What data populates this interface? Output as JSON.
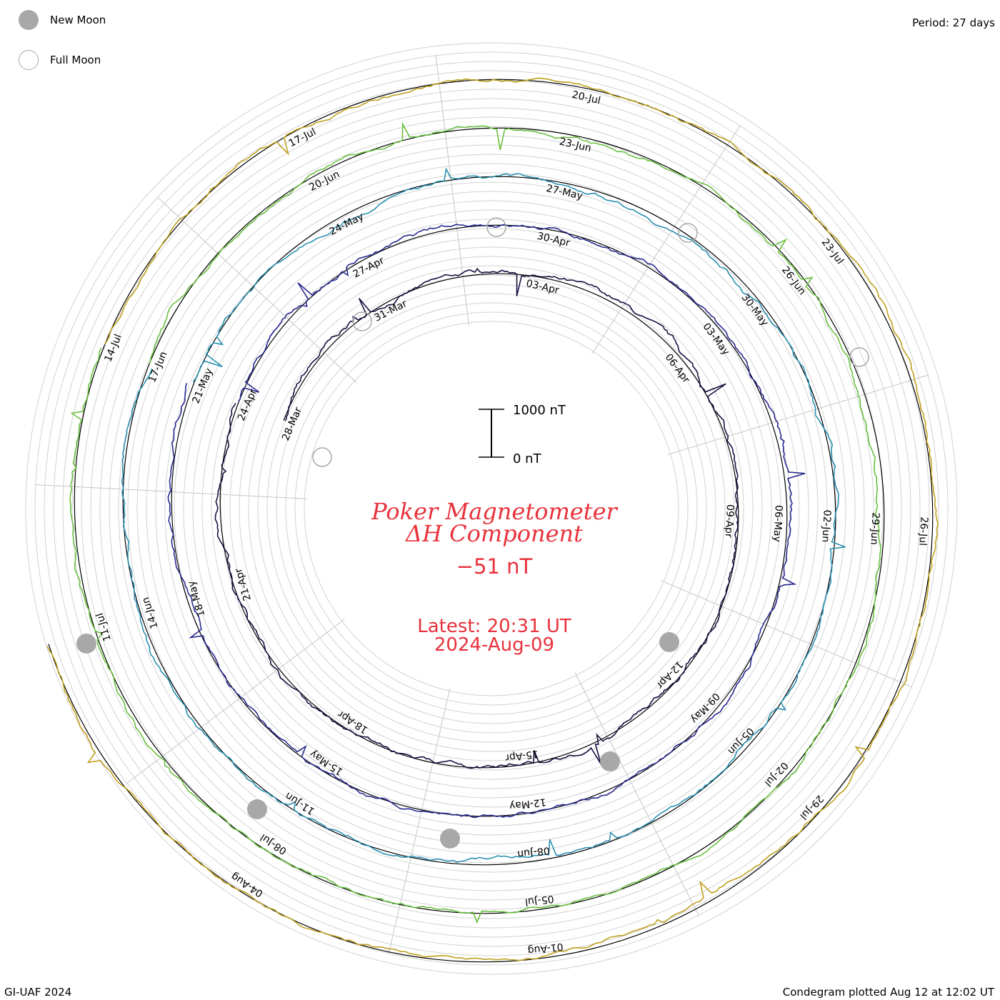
{
  "legend": {
    "new_moon_label": "New Moon",
    "full_moon_label": "Full Moon",
    "new_moon_color": "#a8a8a8",
    "full_moon_color": "#a8a8a8"
  },
  "header": {
    "period_text": "Period: 27 days"
  },
  "footer": {
    "left_text": "GI-UAF 2024",
    "right_text": "Condegram plotted Aug 12 at 12:02 UT"
  },
  "center": {
    "title_line1": "Poker Magnetometer",
    "title_line2": "ΔH Component",
    "value_text": "−51 nT",
    "latest_line1": "Latest: 20:31 UT",
    "latest_line2": "2024-Aug-09",
    "scale_top_label": "1000 nT",
    "scale_bottom_label": "0 nT",
    "text_color": "#e8323c"
  },
  "chart_data": {
    "type": "line",
    "title": "Poker Magnetometer ΔH Component",
    "units": "nT",
    "period_days": 27,
    "current_value": -51,
    "latest": "20:31 UT 2024-Aug-09",
    "scale_bar": [
      0,
      1000
    ],
    "rings": [
      {
        "color": "#1a1040",
        "dates": [
          "28-Mar",
          "31-Mar",
          "03-Apr",
          "06-Apr",
          "09-Apr",
          "12-Apr",
          "15-Apr",
          "18-Apr",
          "21-Apr"
        ]
      },
      {
        "color": "#2a2a90",
        "dates": [
          "24-Apr",
          "27-Apr",
          "30-Apr",
          "03-May",
          "06-May",
          "09-May",
          "12-May",
          "15-May",
          "18-May"
        ]
      },
      {
        "color": "#2a90b0",
        "dates": [
          "21-May",
          "24-May",
          "27-May",
          "30-May",
          "02-Jun",
          "05-Jun",
          "08-Jun",
          "11-Jun",
          "14-Jun"
        ]
      },
      {
        "color": "#6ac040",
        "dates": [
          "17-Jun",
          "20-Jun",
          "23-Jun",
          "26-Jun",
          "29-Jun",
          "02-Jul",
          "05-Jul",
          "08-Jul",
          "11-Jul"
        ]
      },
      {
        "color": "#c0a020",
        "dates": [
          "14-Jul",
          "17-Jul",
          "20-Jul",
          "23-Jul",
          "26-Jul",
          "29-Jul",
          "01-Aug",
          "04-Aug"
        ]
      }
    ],
    "new_moons": [
      "08-Apr",
      "08-May",
      "06-Jun",
      "05-Jul",
      "04-Aug"
    ],
    "full_moons": [
      "23-Apr",
      "23-May",
      "22-Jun",
      "21-Jul"
    ],
    "grid": true
  }
}
